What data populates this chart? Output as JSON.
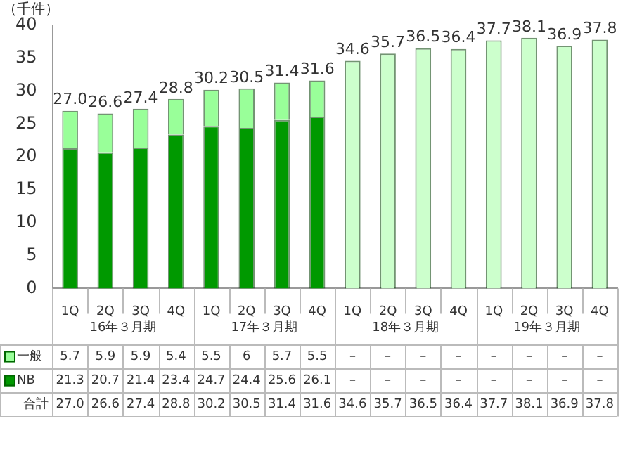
{
  "chart_data": {
    "type": "bar",
    "stacked": true,
    "ylabel": "（千件）",
    "categories": [
      "1Q",
      "2Q",
      "3Q",
      "4Q",
      "1Q",
      "2Q",
      "3Q",
      "4Q",
      "1Q",
      "2Q",
      "3Q",
      "4Q",
      "1Q",
      "2Q",
      "3Q",
      "4Q"
    ],
    "series": [
      {
        "name": "NB",
        "color": "#009900",
        "values": [
          21.3,
          20.7,
          21.4,
          23.4,
          24.7,
          24.4,
          25.6,
          26.1,
          null,
          null,
          null,
          null,
          null,
          null,
          null,
          null
        ],
        "value_labels": [
          "21.3",
          "20.7",
          "21.4",
          "23.4",
          "24.7",
          "24.4",
          "25.6",
          "26.1",
          "–",
          "–",
          "–",
          "–",
          "–",
          "–",
          "–",
          "–"
        ]
      },
      {
        "name": "一般",
        "color": "#99ff99",
        "values": [
          5.7,
          5.9,
          5.9,
          5.4,
          5.5,
          6,
          5.7,
          5.5,
          null,
          null,
          null,
          null,
          null,
          null,
          null,
          null
        ],
        "value_labels": [
          "5.7",
          "5.9",
          "5.9",
          "5.4",
          "5.5",
          "6",
          "5.7",
          "5.5",
          "–",
          "–",
          "–",
          "–",
          "–",
          "–",
          "–",
          "–"
        ]
      },
      {
        "color": "#ccffcc",
        "values": [
          null,
          null,
          null,
          null,
          null,
          null,
          null,
          null,
          34.6,
          35.7,
          36.5,
          36.4,
          37.7,
          38.1,
          36.9,
          37.8
        ]
      }
    ],
    "totals": [
      "27.0",
      "26.6",
      "27.4",
      "28.8",
      "30.2",
      "30.5",
      "31.4",
      "31.6",
      "34.6",
      "35.7",
      "36.5",
      "36.4",
      "37.7",
      "38.1",
      "36.9",
      "37.8"
    ],
    "annotations": [
      "16年３月期",
      "17年３月期",
      "18年３月期",
      "19年３月期",
      "合計"
    ],
    "ylim": [
      0,
      40
    ],
    "yticks": [
      0,
      5,
      10,
      15,
      20,
      25,
      30,
      35,
      40
    ],
    "grid": false,
    "legend": "bottom"
  }
}
